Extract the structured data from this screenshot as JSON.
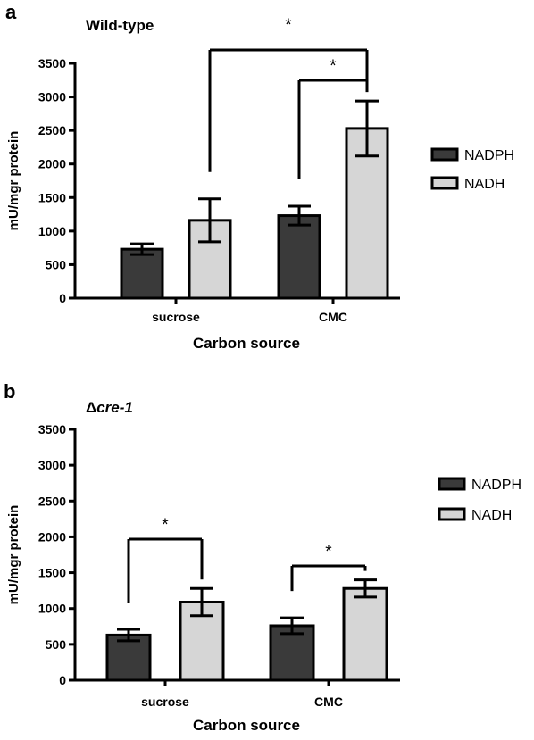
{
  "figure": {
    "panels": [
      {
        "letter": "a",
        "title": "Wild-type",
        "title_italic": false
      },
      {
        "letter": "b",
        "title_prefix": "Δ",
        "title": "cre-1",
        "title_italic": true
      }
    ]
  },
  "chart_data": [
    {
      "type": "bar",
      "panel": "a",
      "title": "Wild-type",
      "xlabel": "Carbon source",
      "ylabel": "mU/mgr protein",
      "ylim": [
        0,
        3500
      ],
      "yticks": [
        0,
        500,
        1000,
        1500,
        2000,
        2500,
        3000,
        3500
      ],
      "categories": [
        "sucrose",
        "CMC"
      ],
      "series": [
        {
          "name": "NADPH",
          "color": "#3a3a3a",
          "values": [
            730,
            1230
          ],
          "errors": [
            80,
            140
          ]
        },
        {
          "name": "NADH",
          "color": "#d6d6d6",
          "values": [
            1160,
            2530
          ],
          "errors": [
            320,
            410
          ]
        }
      ],
      "legend_position": "right",
      "grid": false,
      "significance": [
        {
          "label": "*",
          "from": {
            "series": 1,
            "category": 0
          },
          "to": {
            "series": 1,
            "category": 1
          }
        },
        {
          "label": "*",
          "from": {
            "series": 0,
            "category": 1
          },
          "to": {
            "series": 1,
            "category": 1
          }
        }
      ]
    },
    {
      "type": "bar",
      "panel": "b",
      "title": "Δcre-1",
      "xlabel": "Carbon source",
      "ylabel": "mU/mgr protein",
      "ylim": [
        0,
        3500
      ],
      "yticks": [
        0,
        500,
        1000,
        1500,
        2000,
        2500,
        3000,
        3500
      ],
      "categories": [
        "sucrose",
        "CMC"
      ],
      "series": [
        {
          "name": "NADPH",
          "color": "#3a3a3a",
          "values": [
            630,
            760
          ],
          "errors": [
            80,
            110
          ]
        },
        {
          "name": "NADH",
          "color": "#d6d6d6",
          "values": [
            1090,
            1280
          ],
          "errors": [
            190,
            120
          ]
        }
      ],
      "legend_position": "right",
      "grid": false,
      "significance": [
        {
          "label": "*",
          "from": {
            "series": 0,
            "category": 0
          },
          "to": {
            "series": 1,
            "category": 0
          }
        },
        {
          "label": "*",
          "from": {
            "series": 0,
            "category": 1
          },
          "to": {
            "series": 1,
            "category": 1
          }
        }
      ]
    }
  ]
}
